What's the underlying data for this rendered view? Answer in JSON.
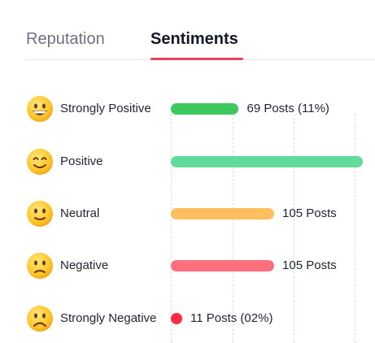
{
  "tabs": [
    {
      "label": "Reputation",
      "active": false
    },
    {
      "label": "Sentiments",
      "active": true
    }
  ],
  "accent_color": "#f0405a",
  "chart_data": {
    "type": "bar",
    "orientation": "horizontal",
    "grid": true,
    "categories": [
      "Strongly Positive",
      "Positive",
      "Neutral",
      "Negative",
      "Strongly Negative"
    ],
    "values": [
      69,
      195,
      105,
      105,
      11
    ],
    "value_labels": [
      "69 Posts (11%)",
      "",
      "105 Posts",
      "105 Posts",
      "11 Posts (02%)"
    ],
    "colors": [
      "#3ec95e",
      "#62dc9a",
      "#ffbf5e",
      "#ff6f7d",
      "#ff2b45"
    ],
    "emojis": [
      "grinning-face-icon",
      "smiling-face-icon",
      "slightly-smiling-face-icon",
      "slightly-frowning-face-icon",
      "frowning-face-icon"
    ],
    "xlim": [
      0,
      200
    ]
  }
}
